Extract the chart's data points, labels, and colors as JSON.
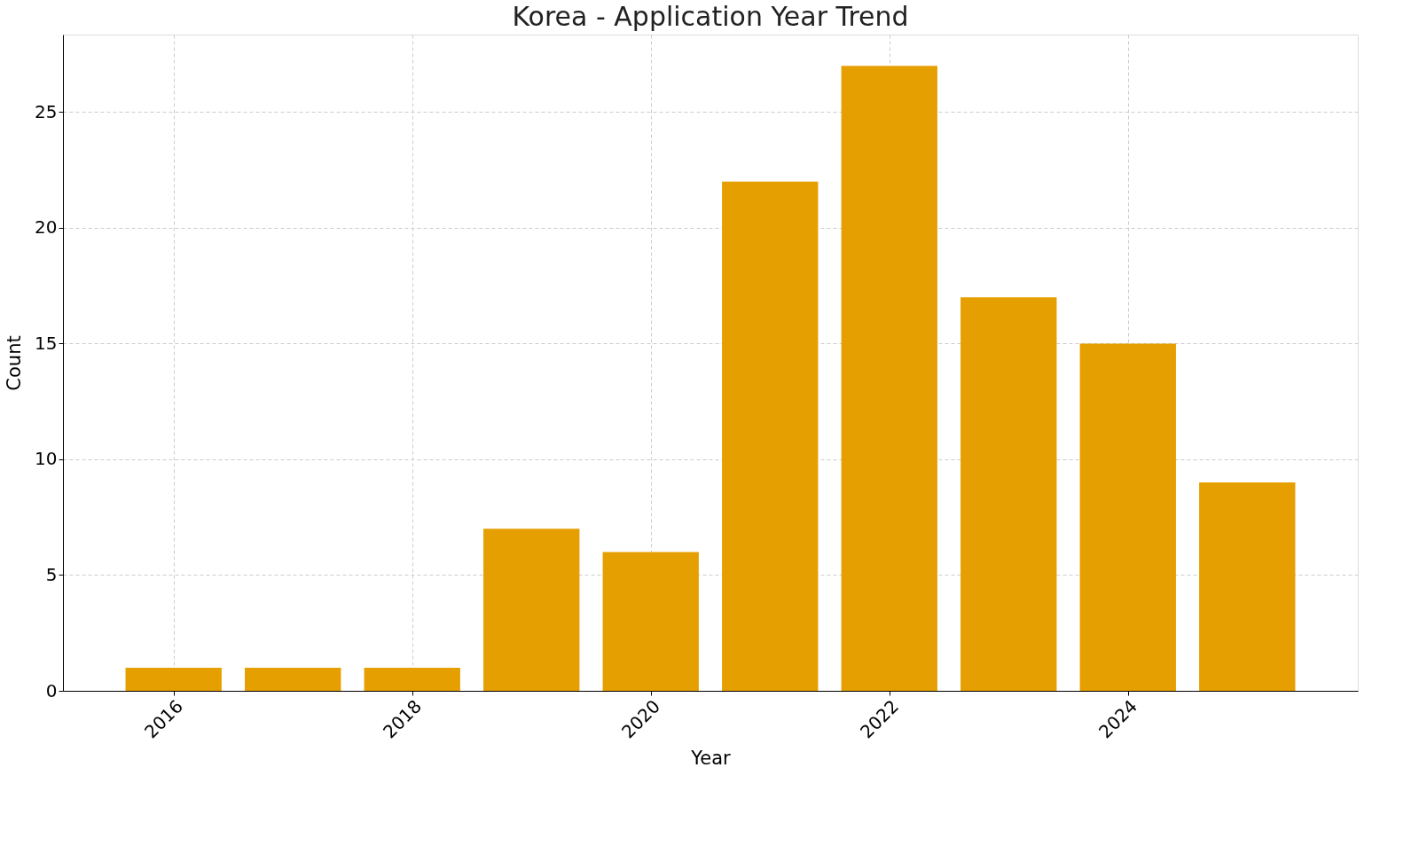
{
  "chart_data": {
    "type": "bar",
    "title": "Korea - Application Year Trend",
    "xlabel": "Year",
    "ylabel": "Count",
    "x": [
      2016,
      2017,
      2018,
      2019,
      2020,
      2021,
      2022,
      2023,
      2024,
      2025
    ],
    "values": [
      1,
      1,
      1,
      7,
      6,
      22,
      27,
      17,
      15,
      9
    ],
    "color": "#e69f00",
    "xlim": [
      2015.11,
      2025.89
    ],
    "xticks": [
      2016,
      2018,
      2020,
      2022,
      2024
    ],
    "ylim": [
      0,
      28.35
    ],
    "yticks": [
      0,
      5,
      10,
      15,
      20,
      25
    ],
    "grid": true
  }
}
